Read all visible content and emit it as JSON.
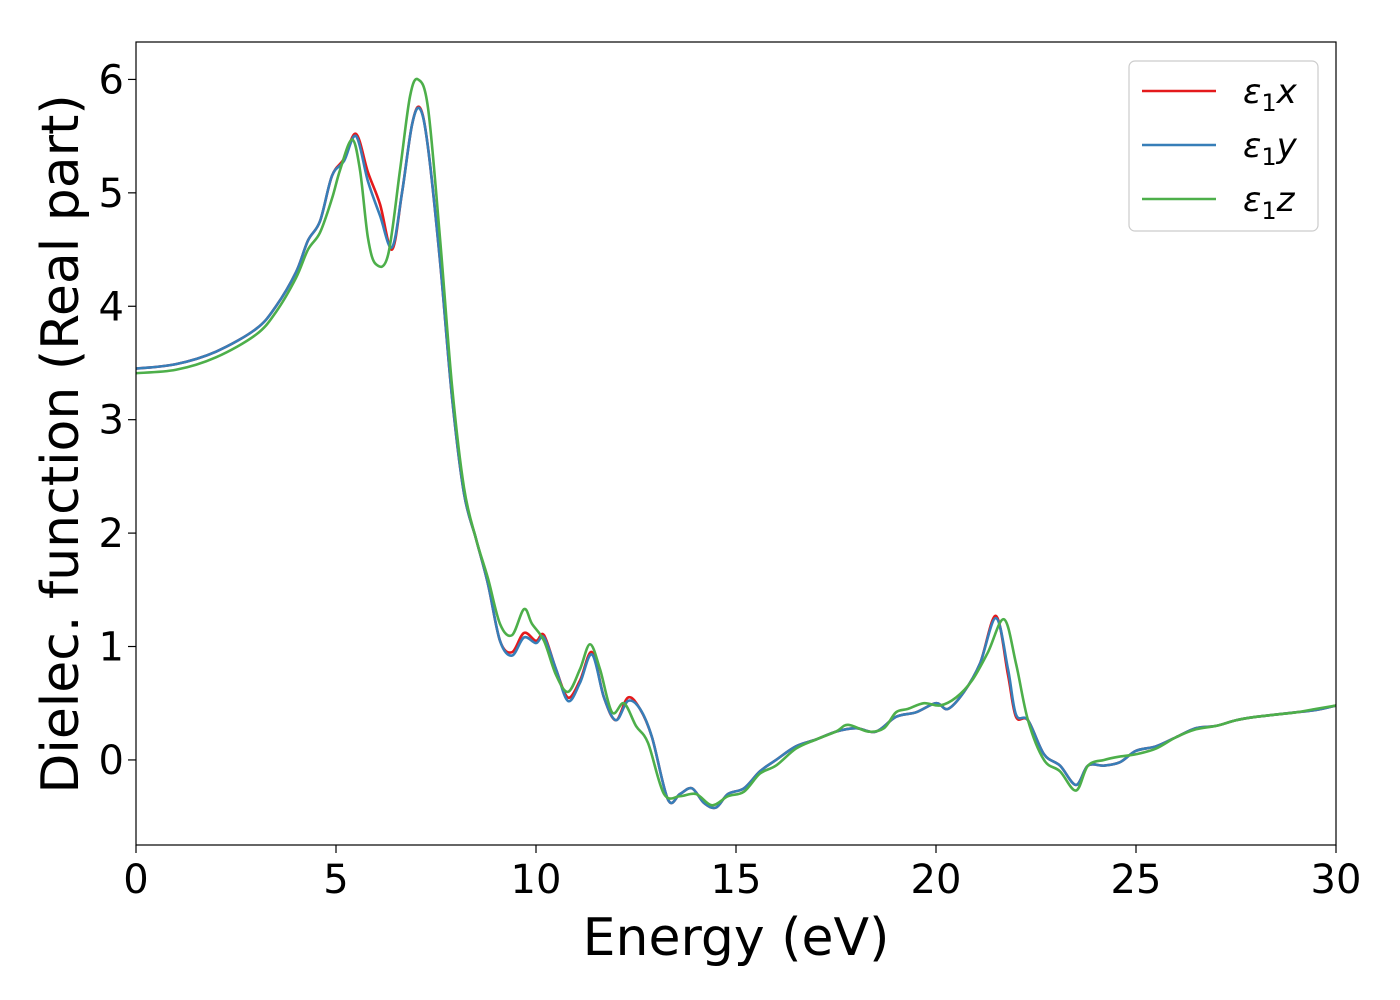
{
  "chart_data": {
    "type": "line",
    "xlabel": "Energy (eV)",
    "ylabel": "Dielec. function (Real part)",
    "xlim": [
      0,
      30
    ],
    "ylim": [
      -0.75,
      6.33
    ],
    "x_ticks": [
      0,
      5,
      10,
      15,
      20,
      25,
      30
    ],
    "y_ticks": [
      0,
      1,
      2,
      3,
      4,
      5,
      6
    ],
    "grid": false,
    "legend_position": "top-right",
    "series": [
      {
        "name": "ε₁x",
        "legend_sub": "1",
        "legend_base": "ε",
        "legend_suffix": "x",
        "color": "#e41a1c",
        "points": [
          [
            0,
            3.45
          ],
          [
            1,
            3.49
          ],
          [
            2,
            3.6
          ],
          [
            3,
            3.8
          ],
          [
            3.5,
            4.0
          ],
          [
            4,
            4.3
          ],
          [
            4.3,
            4.58
          ],
          [
            4.6,
            4.75
          ],
          [
            4.9,
            5.15
          ],
          [
            5.2,
            5.3
          ],
          [
            5.5,
            5.52
          ],
          [
            5.8,
            5.18
          ],
          [
            6.1,
            4.9
          ],
          [
            6.4,
            4.5
          ],
          [
            6.65,
            5.0
          ],
          [
            6.9,
            5.6
          ],
          [
            7.1,
            5.75
          ],
          [
            7.3,
            5.4
          ],
          [
            7.6,
            4.4
          ],
          [
            7.9,
            3.2
          ],
          [
            8.2,
            2.35
          ],
          [
            8.5,
            1.95
          ],
          [
            8.8,
            1.55
          ],
          [
            9.1,
            1.05
          ],
          [
            9.4,
            0.95
          ],
          [
            9.7,
            1.12
          ],
          [
            10.0,
            1.05
          ],
          [
            10.2,
            1.1
          ],
          [
            10.5,
            0.8
          ],
          [
            10.8,
            0.55
          ],
          [
            11.1,
            0.7
          ],
          [
            11.4,
            0.95
          ],
          [
            11.7,
            0.55
          ],
          [
            12.0,
            0.35
          ],
          [
            12.3,
            0.55
          ],
          [
            12.6,
            0.45
          ],
          [
            12.9,
            0.2
          ],
          [
            13.3,
            -0.35
          ],
          [
            13.6,
            -0.3
          ],
          [
            13.9,
            -0.25
          ],
          [
            14.2,
            -0.38
          ],
          [
            14.5,
            -0.42
          ],
          [
            14.8,
            -0.3
          ],
          [
            15.2,
            -0.25
          ],
          [
            15.6,
            -0.1
          ],
          [
            16.0,
            0.0
          ],
          [
            16.5,
            0.12
          ],
          [
            17.0,
            0.18
          ],
          [
            17.5,
            0.25
          ],
          [
            18.0,
            0.28
          ],
          [
            18.5,
            0.25
          ],
          [
            19.0,
            0.38
          ],
          [
            19.5,
            0.42
          ],
          [
            20.0,
            0.5
          ],
          [
            20.3,
            0.45
          ],
          [
            20.7,
            0.6
          ],
          [
            21.1,
            0.85
          ],
          [
            21.5,
            1.27
          ],
          [
            21.8,
            0.75
          ],
          [
            22.0,
            0.38
          ],
          [
            22.3,
            0.35
          ],
          [
            22.7,
            0.05
          ],
          [
            23.1,
            -0.05
          ],
          [
            23.5,
            -0.22
          ],
          [
            23.8,
            -0.05
          ],
          [
            24.2,
            -0.05
          ],
          [
            24.6,
            -0.02
          ],
          [
            25.0,
            0.08
          ],
          [
            25.5,
            0.12
          ],
          [
            26.0,
            0.2
          ],
          [
            26.5,
            0.28
          ],
          [
            27.0,
            0.3
          ],
          [
            27.5,
            0.35
          ],
          [
            28.0,
            0.38
          ],
          [
            28.5,
            0.4
          ],
          [
            29.0,
            0.42
          ],
          [
            29.5,
            0.44
          ],
          [
            30,
            0.48
          ]
        ]
      },
      {
        "name": "ε₁y",
        "legend_sub": "1",
        "legend_base": "ε",
        "legend_suffix": "y",
        "color": "#377eb8",
        "points": [
          [
            0,
            3.45
          ],
          [
            1,
            3.49
          ],
          [
            2,
            3.6
          ],
          [
            3,
            3.8
          ],
          [
            3.5,
            4.0
          ],
          [
            4,
            4.3
          ],
          [
            4.3,
            4.58
          ],
          [
            4.6,
            4.75
          ],
          [
            4.9,
            5.15
          ],
          [
            5.2,
            5.28
          ],
          [
            5.5,
            5.5
          ],
          [
            5.8,
            5.1
          ],
          [
            6.1,
            4.8
          ],
          [
            6.4,
            4.52
          ],
          [
            6.65,
            5.0
          ],
          [
            6.9,
            5.6
          ],
          [
            7.1,
            5.74
          ],
          [
            7.3,
            5.4
          ],
          [
            7.6,
            4.4
          ],
          [
            7.9,
            3.2
          ],
          [
            8.2,
            2.35
          ],
          [
            8.5,
            1.95
          ],
          [
            8.8,
            1.55
          ],
          [
            9.1,
            1.05
          ],
          [
            9.4,
            0.92
          ],
          [
            9.7,
            1.08
          ],
          [
            10.0,
            1.03
          ],
          [
            10.2,
            1.08
          ],
          [
            10.5,
            0.8
          ],
          [
            10.8,
            0.52
          ],
          [
            11.1,
            0.68
          ],
          [
            11.4,
            0.93
          ],
          [
            11.7,
            0.55
          ],
          [
            12.0,
            0.35
          ],
          [
            12.3,
            0.52
          ],
          [
            12.6,
            0.45
          ],
          [
            12.9,
            0.2
          ],
          [
            13.3,
            -0.35
          ],
          [
            13.6,
            -0.3
          ],
          [
            13.9,
            -0.25
          ],
          [
            14.2,
            -0.38
          ],
          [
            14.5,
            -0.42
          ],
          [
            14.8,
            -0.3
          ],
          [
            15.2,
            -0.25
          ],
          [
            15.6,
            -0.1
          ],
          [
            16.0,
            0.0
          ],
          [
            16.5,
            0.12
          ],
          [
            17.0,
            0.18
          ],
          [
            17.5,
            0.25
          ],
          [
            18.0,
            0.28
          ],
          [
            18.5,
            0.25
          ],
          [
            19.0,
            0.38
          ],
          [
            19.5,
            0.42
          ],
          [
            20.0,
            0.5
          ],
          [
            20.3,
            0.45
          ],
          [
            20.7,
            0.6
          ],
          [
            21.1,
            0.85
          ],
          [
            21.5,
            1.25
          ],
          [
            21.8,
            0.8
          ],
          [
            22.0,
            0.4
          ],
          [
            22.3,
            0.35
          ],
          [
            22.7,
            0.05
          ],
          [
            23.1,
            -0.05
          ],
          [
            23.5,
            -0.22
          ],
          [
            23.8,
            -0.05
          ],
          [
            24.2,
            -0.05
          ],
          [
            24.6,
            -0.02
          ],
          [
            25.0,
            0.08
          ],
          [
            25.5,
            0.12
          ],
          [
            26.0,
            0.2
          ],
          [
            26.5,
            0.28
          ],
          [
            27.0,
            0.3
          ],
          [
            27.5,
            0.35
          ],
          [
            28.0,
            0.38
          ],
          [
            28.5,
            0.4
          ],
          [
            29.0,
            0.42
          ],
          [
            29.5,
            0.44
          ],
          [
            30,
            0.48
          ]
        ]
      },
      {
        "name": "ε₁z",
        "legend_sub": "1",
        "legend_base": "ε",
        "legend_suffix": "z",
        "color": "#4daf4a",
        "points": [
          [
            0,
            3.41
          ],
          [
            1,
            3.44
          ],
          [
            2,
            3.55
          ],
          [
            3,
            3.75
          ],
          [
            3.5,
            3.95
          ],
          [
            4,
            4.25
          ],
          [
            4.3,
            4.5
          ],
          [
            4.6,
            4.65
          ],
          [
            4.9,
            4.95
          ],
          [
            5.1,
            5.2
          ],
          [
            5.4,
            5.47
          ],
          [
            5.6,
            5.2
          ],
          [
            5.8,
            4.6
          ],
          [
            6.0,
            4.37
          ],
          [
            6.3,
            4.45
          ],
          [
            6.6,
            5.2
          ],
          [
            6.85,
            5.85
          ],
          [
            7.05,
            6.0
          ],
          [
            7.3,
            5.75
          ],
          [
            7.6,
            4.6
          ],
          [
            7.9,
            3.3
          ],
          [
            8.2,
            2.4
          ],
          [
            8.5,
            1.95
          ],
          [
            8.8,
            1.6
          ],
          [
            9.1,
            1.2
          ],
          [
            9.4,
            1.1
          ],
          [
            9.7,
            1.33
          ],
          [
            9.9,
            1.2
          ],
          [
            10.2,
            1.05
          ],
          [
            10.5,
            0.75
          ],
          [
            10.8,
            0.6
          ],
          [
            11.1,
            0.8
          ],
          [
            11.35,
            1.02
          ],
          [
            11.6,
            0.8
          ],
          [
            11.9,
            0.42
          ],
          [
            12.2,
            0.5
          ],
          [
            12.5,
            0.3
          ],
          [
            12.8,
            0.15
          ],
          [
            13.2,
            -0.3
          ],
          [
            13.6,
            -0.32
          ],
          [
            14.0,
            -0.3
          ],
          [
            14.4,
            -0.4
          ],
          [
            14.8,
            -0.32
          ],
          [
            15.2,
            -0.28
          ],
          [
            15.6,
            -0.12
          ],
          [
            16.0,
            -0.05
          ],
          [
            16.5,
            0.1
          ],
          [
            17.0,
            0.18
          ],
          [
            17.5,
            0.25
          ],
          [
            17.8,
            0.31
          ],
          [
            18.3,
            0.25
          ],
          [
            18.7,
            0.28
          ],
          [
            19.0,
            0.42
          ],
          [
            19.3,
            0.45
          ],
          [
            19.7,
            0.5
          ],
          [
            20.1,
            0.48
          ],
          [
            20.5,
            0.55
          ],
          [
            20.9,
            0.7
          ],
          [
            21.3,
            0.95
          ],
          [
            21.7,
            1.24
          ],
          [
            22.0,
            0.85
          ],
          [
            22.3,
            0.35
          ],
          [
            22.7,
            0.0
          ],
          [
            23.1,
            -0.1
          ],
          [
            23.5,
            -0.27
          ],
          [
            23.8,
            -0.05
          ],
          [
            24.2,
            0.0
          ],
          [
            24.6,
            0.03
          ],
          [
            25.0,
            0.05
          ],
          [
            25.5,
            0.1
          ],
          [
            26.0,
            0.2
          ],
          [
            26.5,
            0.27
          ],
          [
            27.0,
            0.3
          ],
          [
            27.5,
            0.35
          ],
          [
            28.0,
            0.38
          ],
          [
            28.5,
            0.4
          ],
          [
            29.0,
            0.42
          ],
          [
            29.5,
            0.45
          ],
          [
            30,
            0.48
          ]
        ]
      }
    ]
  }
}
